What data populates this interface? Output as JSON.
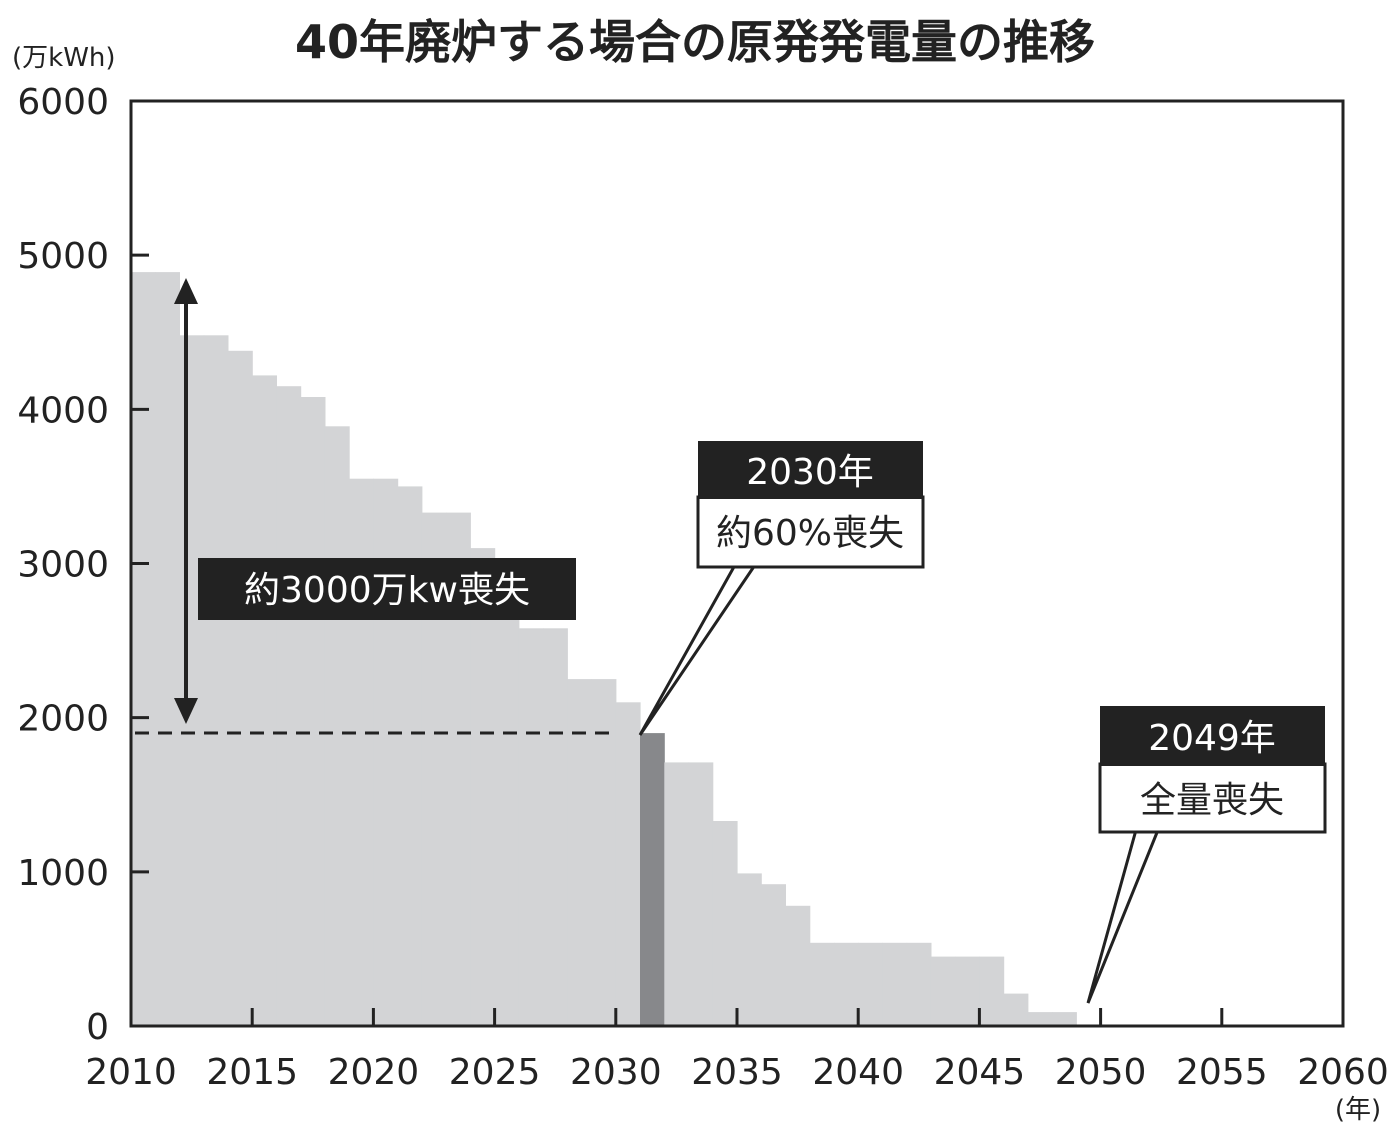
{
  "chart_data": {
    "type": "bar",
    "title": "40年廃炉する場合の原発発電量の推移",
    "ylabel": "(万kWh)",
    "xlabel": "(年)",
    "xlim": [
      2010,
      2060
    ],
    "ylim": [
      0,
      6000
    ],
    "xticks": [
      2010,
      2015,
      2020,
      2025,
      2030,
      2035,
      2040,
      2045,
      2050,
      2055,
      2060
    ],
    "yticks": [
      0,
      1000,
      2000,
      3000,
      4000,
      5000,
      6000
    ],
    "grid": false,
    "colors": {
      "bar": "#d3d4d6",
      "highlight": "#87888b",
      "frame": "#222222",
      "label_bg": "#222222"
    },
    "x": [
      2010,
      2011,
      2012,
      2013,
      2014,
      2015,
      2016,
      2017,
      2018,
      2019,
      2020,
      2021,
      2022,
      2023,
      2024,
      2025,
      2026,
      2027,
      2028,
      2029,
      2030,
      2031,
      2032,
      2033,
      2034,
      2035,
      2036,
      2037,
      2038,
      2039,
      2040,
      2041,
      2042,
      2043,
      2044,
      2045,
      2046,
      2047,
      2048
    ],
    "values": [
      4890,
      4890,
      4480,
      4480,
      4380,
      4220,
      4150,
      4080,
      3890,
      3550,
      3550,
      3500,
      3330,
      3330,
      3100,
      3000,
      2580,
      2580,
      2250,
      2250,
      2100,
      1900,
      1710,
      1710,
      1330,
      990,
      920,
      780,
      540,
      540,
      540,
      540,
      540,
      450,
      450,
      450,
      210,
      90,
      90
    ],
    "highlight_index": 21,
    "reference_line": {
      "y": 1900,
      "style": "dashed"
    },
    "annotations": [
      {
        "id": "loss-total",
        "text": "約3000万kw喪失"
      },
      {
        "id": "y2030",
        "title": "2030年",
        "text": "約60%喪失"
      },
      {
        "id": "y2049",
        "title": "2049年",
        "text": "全量喪失"
      }
    ]
  }
}
